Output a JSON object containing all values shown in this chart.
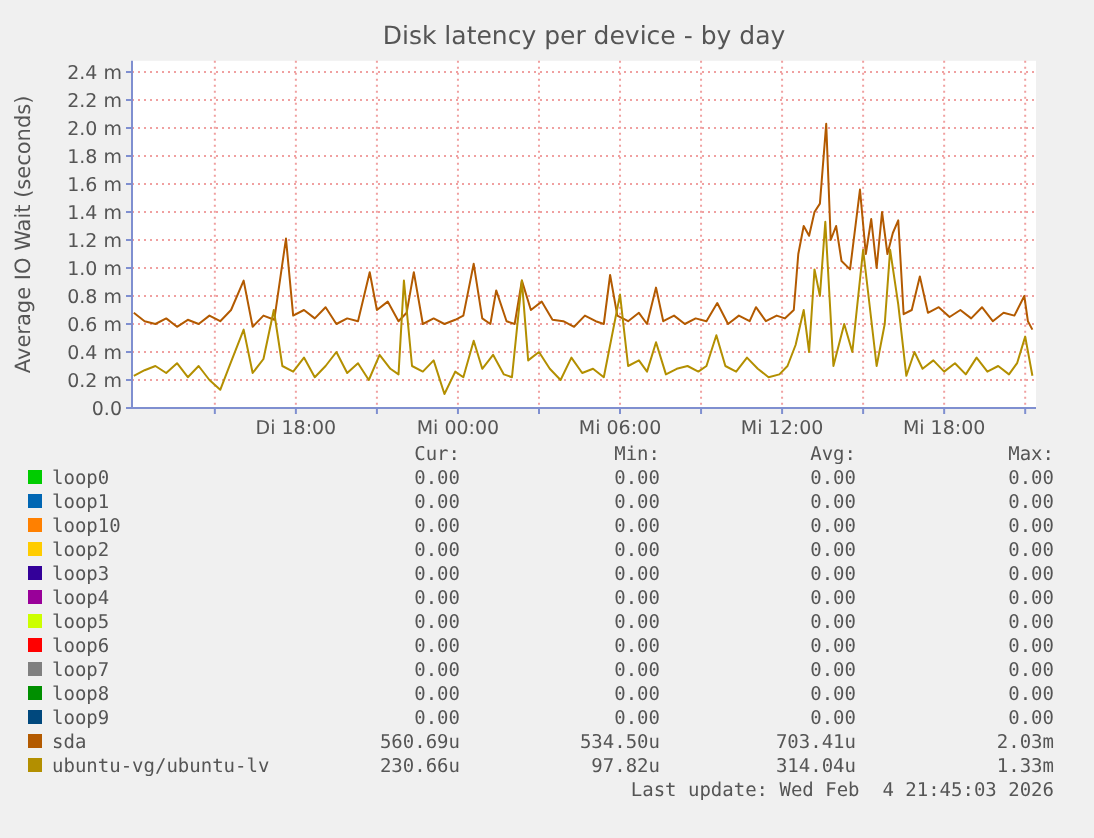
{
  "chart_data": {
    "type": "line",
    "title": "Disk latency per device - by day",
    "ylabel": "Average IO Wait (seconds)",
    "xlim": [
      "2026-02-03T11:56",
      "2026-02-04T21:24"
    ],
    "ylim": [
      0,
      2.48
    ],
    "xticks": [
      {
        "value": "2026-02-03T15:00",
        "label": null
      },
      {
        "value": "2026-02-03T18:00",
        "label": "Di 18:00"
      },
      {
        "value": "2026-02-03T21:00",
        "label": null
      },
      {
        "value": "2026-02-04T00:00",
        "label": "Mi 00:00"
      },
      {
        "value": "2026-02-04T03:00",
        "label": null
      },
      {
        "value": "2026-02-04T06:00",
        "label": "Mi 06:00"
      },
      {
        "value": "2026-02-04T09:00",
        "label": null
      },
      {
        "value": "2026-02-04T12:00",
        "label": "Mi 12:00"
      },
      {
        "value": "2026-02-04T15:00",
        "label": null
      },
      {
        "value": "2026-02-04T18:00",
        "label": "Mi 18:00"
      },
      {
        "value": "2026-02-04T21:00",
        "label": null
      }
    ],
    "yticks": [
      {
        "value": 0,
        "label": "0.0"
      },
      {
        "value": 0.2,
        "label": "0.2 m"
      },
      {
        "value": 0.4,
        "label": "0.4 m"
      },
      {
        "value": 0.6,
        "label": "0.6 m"
      },
      {
        "value": 0.8,
        "label": "0.8 m"
      },
      {
        "value": 1.0,
        "label": "1.0 m"
      },
      {
        "value": 1.2,
        "label": "1.2 m"
      },
      {
        "value": 1.4,
        "label": "1.4 m"
      },
      {
        "value": 1.6,
        "label": "1.6 m"
      },
      {
        "value": 1.8,
        "label": "1.8 m"
      },
      {
        "value": 2.0,
        "label": "2.0 m"
      },
      {
        "value": 2.2,
        "label": "2.2 m"
      },
      {
        "value": 2.4,
        "label": "2.4 m"
      }
    ],
    "grid": true,
    "legend": "bottom",
    "series": [
      {
        "name": "loop0",
        "color": "#00cc00"
      },
      {
        "name": "loop1",
        "color": "#0066b3"
      },
      {
        "name": "loop10",
        "color": "#ff8000"
      },
      {
        "name": "loop2",
        "color": "#ffcc00"
      },
      {
        "name": "loop3",
        "color": "#330099"
      },
      {
        "name": "loop4",
        "color": "#990099"
      },
      {
        "name": "loop5",
        "color": "#ccff00"
      },
      {
        "name": "loop6",
        "color": "#ff0000"
      },
      {
        "name": "loop7",
        "color": "#808080"
      },
      {
        "name": "loop8",
        "color": "#008f00"
      },
      {
        "name": "loop9",
        "color": "#00487d"
      },
      {
        "name": "sda",
        "color": "#b35a00",
        "x": [
          "2026-02-03T12:00",
          "2026-02-03T12:24",
          "2026-02-03T12:48",
          "2026-02-03T13:12",
          "2026-02-03T13:36",
          "2026-02-03T14:00",
          "2026-02-03T14:24",
          "2026-02-03T14:48",
          "2026-02-03T15:12",
          "2026-02-03T15:36",
          "2026-02-03T16:04",
          "2026-02-03T16:24",
          "2026-02-03T16:48",
          "2026-02-03T17:12",
          "2026-02-03T17:38",
          "2026-02-03T17:54",
          "2026-02-03T18:18",
          "2026-02-03T18:42",
          "2026-02-03T19:06",
          "2026-02-03T19:30",
          "2026-02-03T19:54",
          "2026-02-03T20:18",
          "2026-02-03T20:44",
          "2026-02-03T21:00",
          "2026-02-03T21:24",
          "2026-02-03T21:48",
          "2026-02-03T22:06",
          "2026-02-03T22:22",
          "2026-02-03T22:42",
          "2026-02-03T23:06",
          "2026-02-03T23:30",
          "2026-02-03T23:54",
          "2026-02-04T00:12",
          "2026-02-04T00:35",
          "2026-02-04T00:54",
          "2026-02-04T01:12",
          "2026-02-04T01:25",
          "2026-02-04T01:48",
          "2026-02-04T02:06",
          "2026-02-04T02:22",
          "2026-02-04T02:42",
          "2026-02-04T03:06",
          "2026-02-04T03:30",
          "2026-02-04T03:54",
          "2026-02-04T04:18",
          "2026-02-04T04:42",
          "2026-02-04T05:06",
          "2026-02-04T05:24",
          "2026-02-04T05:38",
          "2026-02-04T05:54",
          "2026-02-04T06:18",
          "2026-02-04T06:42",
          "2026-02-04T07:00",
          "2026-02-04T07:20",
          "2026-02-04T07:36",
          "2026-02-04T08:00",
          "2026-02-04T08:24",
          "2026-02-04T08:48",
          "2026-02-04T09:12",
          "2026-02-04T09:36",
          "2026-02-04T10:00",
          "2026-02-04T10:24",
          "2026-02-04T10:48",
          "2026-02-04T11:02",
          "2026-02-04T11:24",
          "2026-02-04T11:48",
          "2026-02-04T12:06",
          "2026-02-04T12:26",
          "2026-02-04T12:36",
          "2026-02-04T12:48",
          "2026-02-04T13:00",
          "2026-02-04T13:12",
          "2026-02-04T13:24",
          "2026-02-04T13:38",
          "2026-02-04T13:48",
          "2026-02-04T14:00",
          "2026-02-04T14:12",
          "2026-02-04T14:31",
          "2026-02-04T14:53",
          "2026-02-04T15:06",
          "2026-02-04T15:18",
          "2026-02-04T15:30",
          "2026-02-04T15:42",
          "2026-02-04T15:54",
          "2026-02-04T16:06",
          "2026-02-04T16:18",
          "2026-02-04T16:30",
          "2026-02-04T16:48",
          "2026-02-04T17:06",
          "2026-02-04T17:24",
          "2026-02-04T17:48",
          "2026-02-04T18:12",
          "2026-02-04T18:36",
          "2026-02-04T19:00",
          "2026-02-04T19:24",
          "2026-02-04T19:48",
          "2026-02-04T20:12",
          "2026-02-04T20:36",
          "2026-02-04T20:58",
          "2026-02-04T21:06",
          "2026-02-04T21:16"
        ],
        "values": [
          0.68,
          0.62,
          0.6,
          0.64,
          0.58,
          0.63,
          0.6,
          0.66,
          0.62,
          0.7,
          0.91,
          0.58,
          0.66,
          0.63,
          1.21,
          0.66,
          0.7,
          0.64,
          0.72,
          0.6,
          0.64,
          0.62,
          0.97,
          0.7,
          0.76,
          0.62,
          0.68,
          0.97,
          0.6,
          0.64,
          0.6,
          0.63,
          0.66,
          1.03,
          0.64,
          0.6,
          0.84,
          0.62,
          0.6,
          0.91,
          0.7,
          0.76,
          0.63,
          0.62,
          0.58,
          0.66,
          0.62,
          0.6,
          0.95,
          0.66,
          0.62,
          0.68,
          0.6,
          0.86,
          0.62,
          0.66,
          0.6,
          0.64,
          0.62,
          0.75,
          0.6,
          0.66,
          0.62,
          0.72,
          0.62,
          0.66,
          0.64,
          0.7,
          1.1,
          1.3,
          1.23,
          1.4,
          1.46,
          2.03,
          1.2,
          1.3,
          1.05,
          0.99,
          1.56,
          1.1,
          1.35,
          1.0,
          1.4,
          1.1,
          1.25,
          1.34,
          0.67,
          0.7,
          0.94,
          0.68,
          0.72,
          0.65,
          0.7,
          0.64,
          0.72,
          0.62,
          0.68,
          0.66,
          0.8,
          0.62,
          0.56
        ]
      },
      {
        "name": "ubuntu-vg/ubuntu-lv",
        "color": "#b38f00",
        "x": [
          "2026-02-03T12:00",
          "2026-02-03T12:24",
          "2026-02-03T12:48",
          "2026-02-03T13:12",
          "2026-02-03T13:36",
          "2026-02-03T14:00",
          "2026-02-03T14:24",
          "2026-02-03T14:48",
          "2026-02-03T15:12",
          "2026-02-03T15:36",
          "2026-02-03T16:04",
          "2026-02-03T16:24",
          "2026-02-03T16:48",
          "2026-02-03T17:11",
          "2026-02-03T17:30",
          "2026-02-03T17:54",
          "2026-02-03T18:18",
          "2026-02-03T18:42",
          "2026-02-03T19:06",
          "2026-02-03T19:30",
          "2026-02-03T19:54",
          "2026-02-03T20:18",
          "2026-02-03T20:42",
          "2026-02-03T21:06",
          "2026-02-03T21:30",
          "2026-02-03T21:48",
          "2026-02-03T22:00",
          "2026-02-03T22:18",
          "2026-02-03T22:42",
          "2026-02-03T23:06",
          "2026-02-03T23:30",
          "2026-02-03T23:54",
          "2026-02-04T00:12",
          "2026-02-04T00:35",
          "2026-02-04T00:54",
          "2026-02-04T01:18",
          "2026-02-04T01:42",
          "2026-02-04T02:00",
          "2026-02-04T02:22",
          "2026-02-04T02:36",
          "2026-02-04T03:00",
          "2026-02-04T03:24",
          "2026-02-04T03:48",
          "2026-02-04T04:12",
          "2026-02-04T04:36",
          "2026-02-04T05:00",
          "2026-02-04T05:24",
          "2026-02-04T06:00",
          "2026-02-04T06:18",
          "2026-02-04T06:42",
          "2026-02-04T07:00",
          "2026-02-04T07:20",
          "2026-02-04T07:42",
          "2026-02-04T08:06",
          "2026-02-04T08:30",
          "2026-02-04T08:54",
          "2026-02-04T09:12",
          "2026-02-04T09:34",
          "2026-02-04T09:54",
          "2026-02-04T10:18",
          "2026-02-04T10:42",
          "2026-02-04T11:06",
          "2026-02-04T11:30",
          "2026-02-04T11:54",
          "2026-02-04T12:12",
          "2026-02-04T12:30",
          "2026-02-04T12:48",
          "2026-02-04T13:00",
          "2026-02-04T13:12",
          "2026-02-04T13:24",
          "2026-02-04T13:36",
          "2026-02-04T13:54",
          "2026-02-04T14:18",
          "2026-02-04T14:36",
          "2026-02-04T15:00",
          "2026-02-04T15:12",
          "2026-02-04T15:30",
          "2026-02-04T15:48",
          "2026-02-04T16:00",
          "2026-02-04T16:18",
          "2026-02-04T16:36",
          "2026-02-04T16:54",
          "2026-02-04T17:12",
          "2026-02-04T17:36",
          "2026-02-04T18:00",
          "2026-02-04T18:24",
          "2026-02-04T18:48",
          "2026-02-04T19:12",
          "2026-02-04T19:36",
          "2026-02-04T20:00",
          "2026-02-04T20:24",
          "2026-02-04T20:42",
          "2026-02-04T21:00",
          "2026-02-04T21:16"
        ],
        "values": [
          0.23,
          0.27,
          0.3,
          0.25,
          0.32,
          0.22,
          0.3,
          0.2,
          0.13,
          0.33,
          0.56,
          0.25,
          0.35,
          0.7,
          0.3,
          0.26,
          0.36,
          0.22,
          0.3,
          0.4,
          0.25,
          0.32,
          0.2,
          0.38,
          0.28,
          0.24,
          0.91,
          0.3,
          0.26,
          0.34,
          0.1,
          0.26,
          0.22,
          0.48,
          0.28,
          0.38,
          0.24,
          0.22,
          0.91,
          0.34,
          0.4,
          0.28,
          0.2,
          0.36,
          0.25,
          0.28,
          0.22,
          0.81,
          0.3,
          0.34,
          0.26,
          0.47,
          0.24,
          0.28,
          0.3,
          0.26,
          0.3,
          0.52,
          0.3,
          0.26,
          0.36,
          0.28,
          0.22,
          0.24,
          0.3,
          0.45,
          0.7,
          0.4,
          0.99,
          0.8,
          1.33,
          0.3,
          0.6,
          0.4,
          1.13,
          0.8,
          0.3,
          0.6,
          1.13,
          0.74,
          0.23,
          0.4,
          0.28,
          0.34,
          0.26,
          0.32,
          0.24,
          0.36,
          0.26,
          0.3,
          0.24,
          0.32,
          0.51,
          0.23
        ]
      }
    ],
    "annotations": [
      "Cur:",
      "Min:",
      "Avg:",
      "Max:",
      "0.00",
      "0.00",
      "0.00",
      "0.00",
      "0.00",
      "0.00",
      "0.00",
      "0.00",
      "0.00",
      "0.00",
      "0.00",
      "0.00",
      "0.00",
      "0.00",
      "0.00",
      "0.00",
      "0.00",
      "0.00",
      "0.00",
      "0.00",
      "0.00",
      "0.00",
      "0.00",
      "0.00",
      "0.00",
      "0.00",
      "0.00",
      "0.00",
      "0.00",
      "0.00",
      "0.00",
      "0.00",
      "0.00",
      "0.00",
      "0.00",
      "0.00",
      "0.00",
      "0.00",
      "0.00",
      "0.00",
      "0.00",
      "0.00",
      "0.00",
      "0.00",
      "560.69u",
      "534.50u",
      "703.41u",
      "2.03m",
      "230.66u",
      "97.82u",
      "314.04u",
      "1.33m",
      "Last update: Wed Feb  4 21:45:03 2026"
    ]
  }
}
